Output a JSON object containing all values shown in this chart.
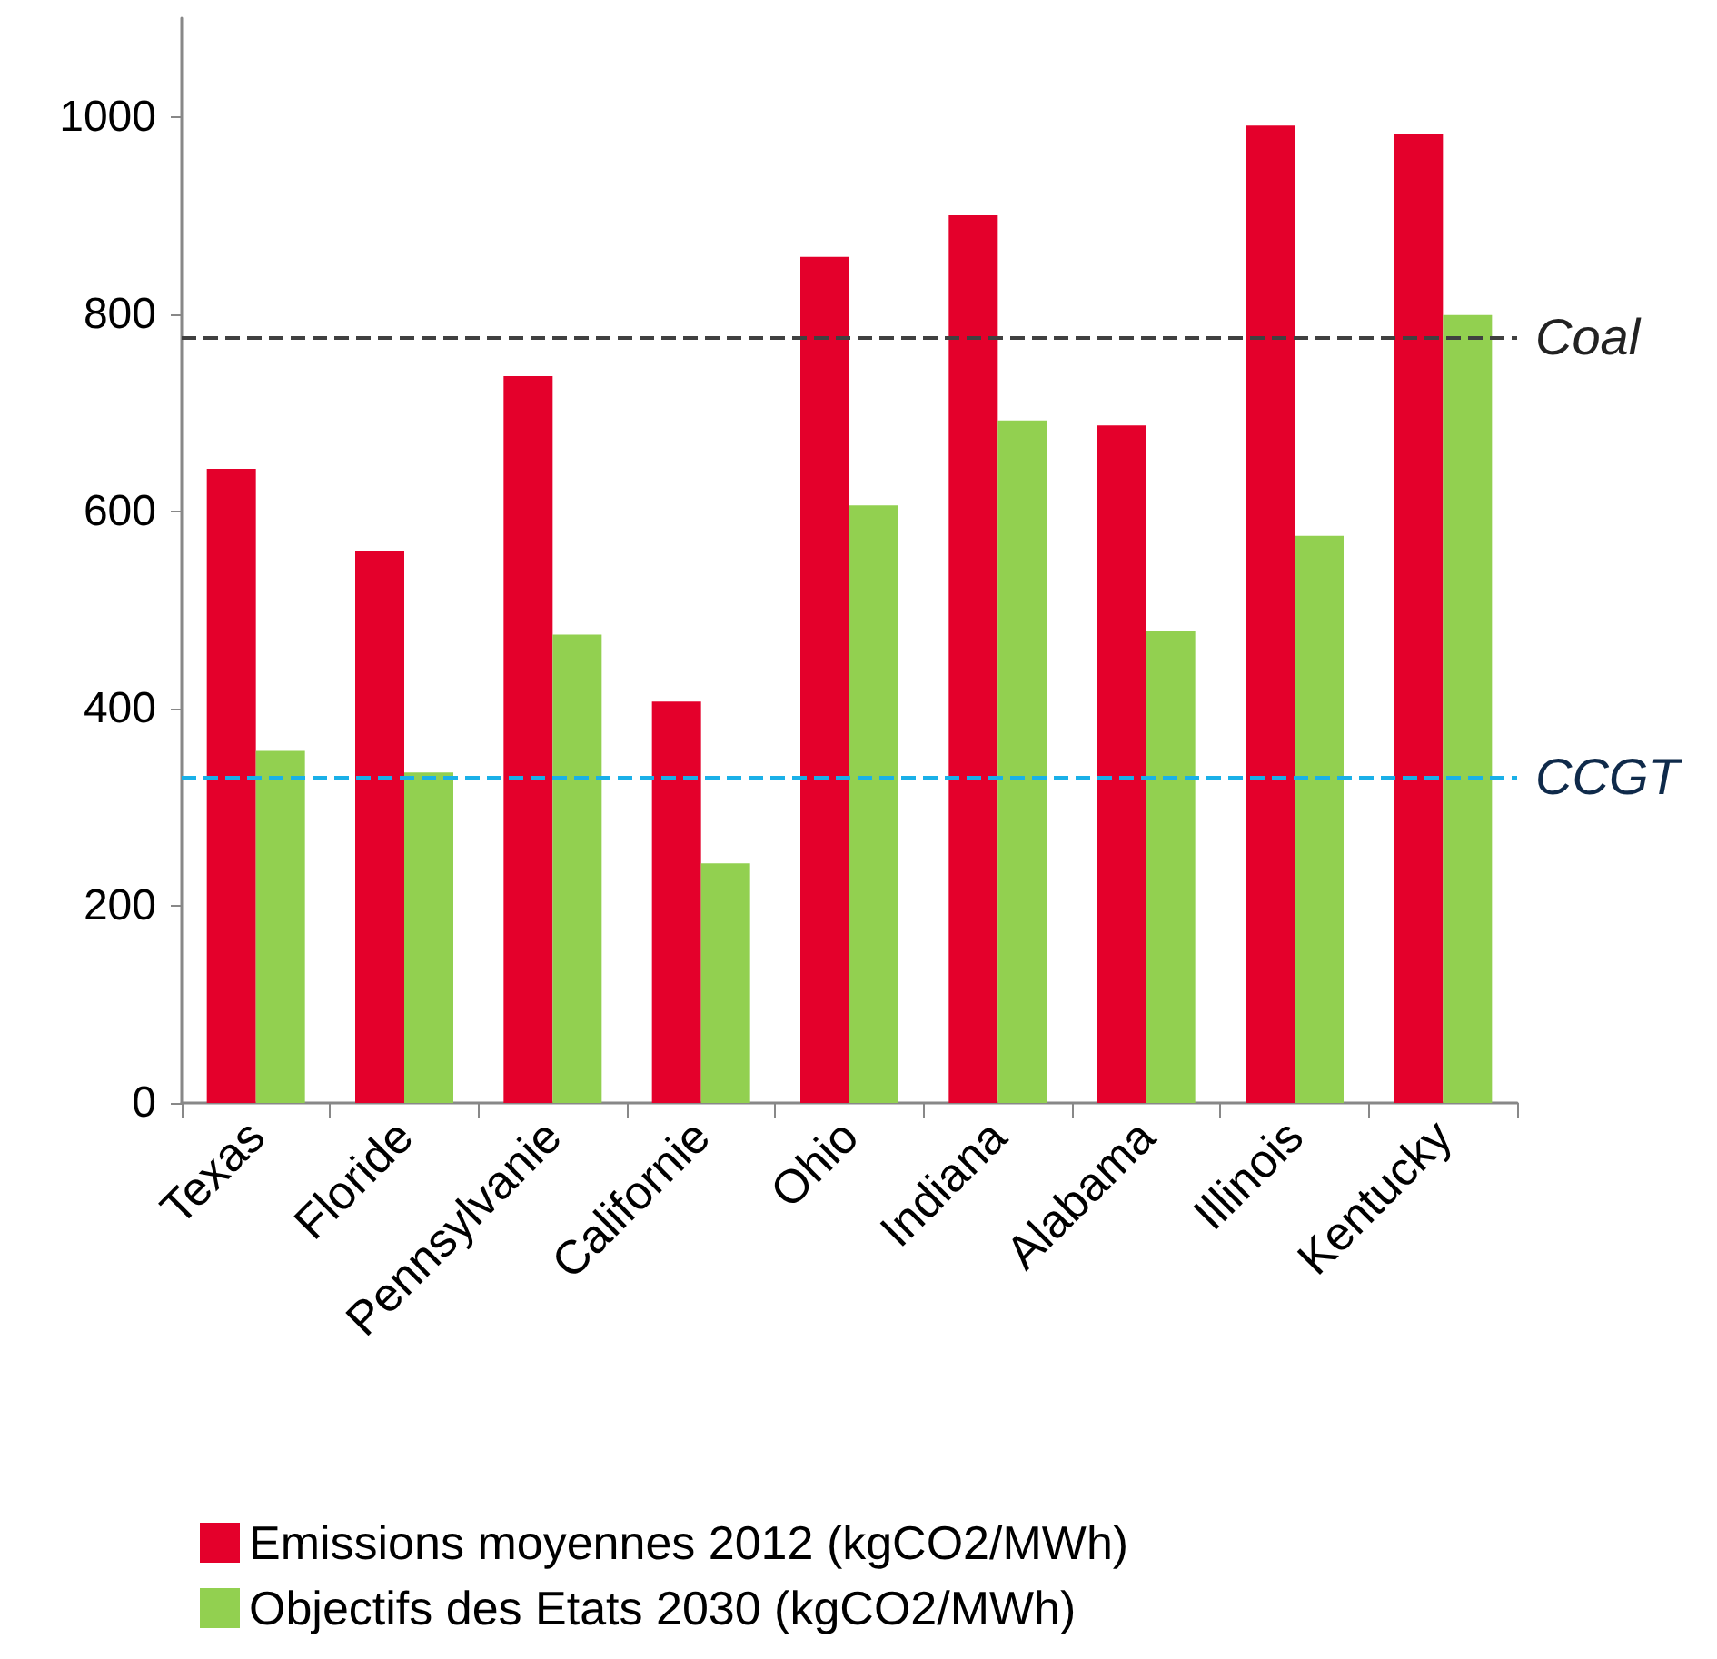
{
  "chart_data": {
    "type": "bar",
    "categories": [
      "Texas",
      "Floride",
      "Pennsylvanie",
      "Californie",
      "Ohio",
      "Indiana",
      "Alabama",
      "Illinois",
      "Kentucky"
    ],
    "series": [
      {
        "name": "Emissions moyennes 2012 (kgCO2/MWh)",
        "color": "#e4002b",
        "values": [
          643,
          560,
          737,
          407,
          858,
          900,
          687,
          991,
          982
        ]
      },
      {
        "name": "Objectifs des Etats 2030 (kgCO2/MWh)",
        "color": "#92d050",
        "values": [
          357,
          335,
          475,
          243,
          606,
          692,
          479,
          575,
          799
        ]
      }
    ],
    "ylim": [
      0,
      1100
    ],
    "yticks": [
      0,
      200,
      400,
      600,
      800,
      1000
    ],
    "grid": false,
    "legend": "bottom",
    "ref_lines": [
      {
        "axis": "y",
        "value": 777,
        "label": "Coal",
        "color": "#404040",
        "line_style": "dashed"
      },
      {
        "axis": "y",
        "value": 331,
        "label": "CCGT",
        "color": "#1ab0e8",
        "line_style": "dashed"
      }
    ]
  }
}
